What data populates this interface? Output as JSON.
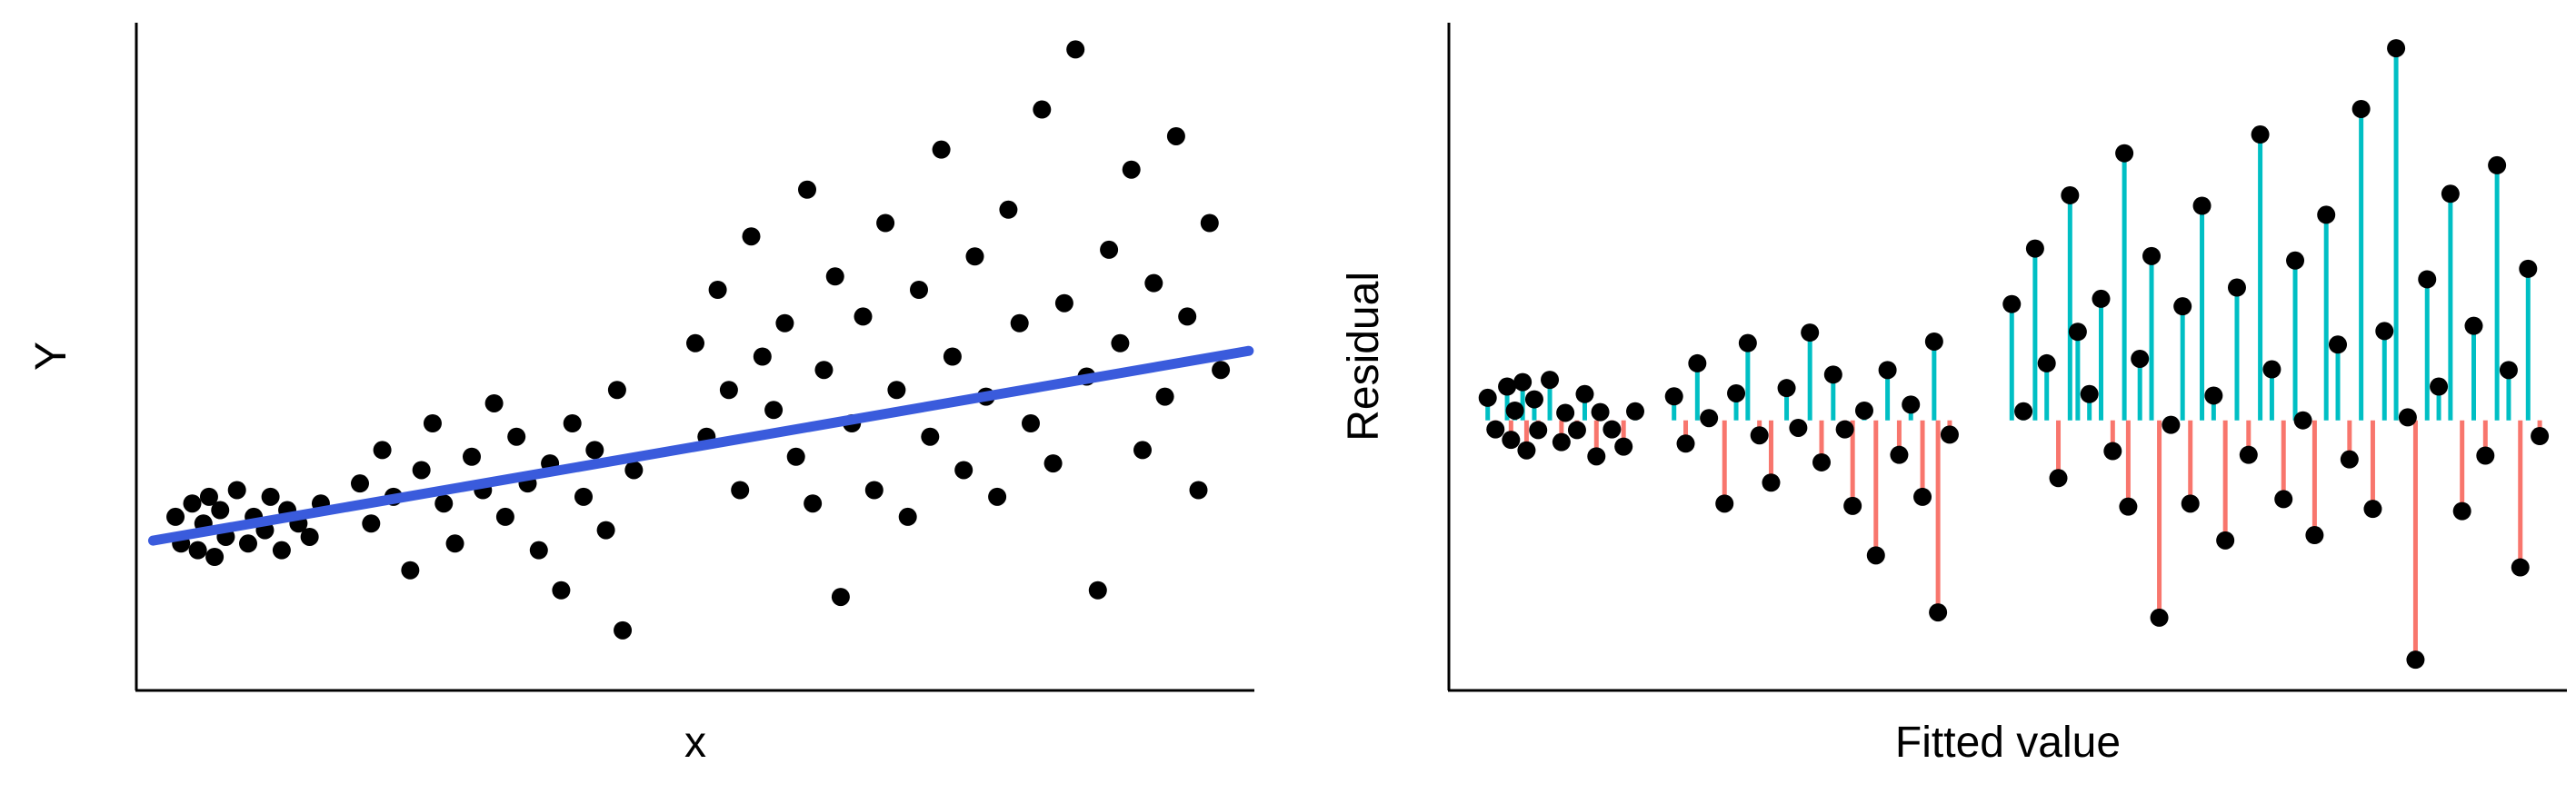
{
  "colors": {
    "background": "#FFFFFF",
    "point": "#000000",
    "axis": "#000000",
    "fit_line": "#3A5BDC",
    "positive_residual": "#00BFC4",
    "negative_residual": "#F8766D"
  },
  "chart_data": [
    {
      "type": "scatter",
      "title": "",
      "xlabel": "x",
      "ylabel": "Y",
      "grid": false,
      "axis_ticks": false,
      "xlim": [
        0,
        1.0
      ],
      "ylim": [
        0,
        1.0
      ],
      "fit_line": {
        "intercept": 0.22,
        "slope": 0.29,
        "x_extent": [
          0.015,
          0.995
        ]
      },
      "points": [
        [
          0.035,
          0.26
        ],
        [
          0.04,
          0.22
        ],
        [
          0.05,
          0.28
        ],
        [
          0.055,
          0.21
        ],
        [
          0.06,
          0.25
        ],
        [
          0.065,
          0.29
        ],
        [
          0.07,
          0.2
        ],
        [
          0.075,
          0.27
        ],
        [
          0.08,
          0.23
        ],
        [
          0.09,
          0.3
        ],
        [
          0.1,
          0.22
        ],
        [
          0.105,
          0.26
        ],
        [
          0.115,
          0.24
        ],
        [
          0.12,
          0.29
        ],
        [
          0.13,
          0.21
        ],
        [
          0.135,
          0.27
        ],
        [
          0.145,
          0.25
        ],
        [
          0.155,
          0.23
        ],
        [
          0.165,
          0.28
        ],
        [
          0.2,
          0.31
        ],
        [
          0.21,
          0.25
        ],
        [
          0.22,
          0.36
        ],
        [
          0.23,
          0.29
        ],
        [
          0.245,
          0.18
        ],
        [
          0.255,
          0.33
        ],
        [
          0.265,
          0.4
        ],
        [
          0.275,
          0.28
        ],
        [
          0.285,
          0.22
        ],
        [
          0.3,
          0.35
        ],
        [
          0.31,
          0.3
        ],
        [
          0.32,
          0.43
        ],
        [
          0.33,
          0.26
        ],
        [
          0.34,
          0.38
        ],
        [
          0.35,
          0.31
        ],
        [
          0.36,
          0.21
        ],
        [
          0.37,
          0.34
        ],
        [
          0.38,
          0.15
        ],
        [
          0.39,
          0.4
        ],
        [
          0.4,
          0.29
        ],
        [
          0.41,
          0.36
        ],
        [
          0.42,
          0.24
        ],
        [
          0.43,
          0.45
        ],
        [
          0.435,
          0.09
        ],
        [
          0.445,
          0.33
        ],
        [
          0.5,
          0.52
        ],
        [
          0.51,
          0.38
        ],
        [
          0.52,
          0.6
        ],
        [
          0.53,
          0.45
        ],
        [
          0.54,
          0.3
        ],
        [
          0.55,
          0.68
        ],
        [
          0.56,
          0.5
        ],
        [
          0.57,
          0.42
        ],
        [
          0.58,
          0.55
        ],
        [
          0.59,
          0.35
        ],
        [
          0.6,
          0.75
        ],
        [
          0.605,
          0.28
        ],
        [
          0.615,
          0.48
        ],
        [
          0.625,
          0.62
        ],
        [
          0.63,
          0.14
        ],
        [
          0.64,
          0.4
        ],
        [
          0.65,
          0.56
        ],
        [
          0.66,
          0.3
        ],
        [
          0.67,
          0.7
        ],
        [
          0.68,
          0.45
        ],
        [
          0.69,
          0.26
        ],
        [
          0.7,
          0.6
        ],
        [
          0.71,
          0.38
        ],
        [
          0.72,
          0.81
        ],
        [
          0.73,
          0.5
        ],
        [
          0.74,
          0.33
        ],
        [
          0.75,
          0.65
        ],
        [
          0.76,
          0.44
        ],
        [
          0.77,
          0.29
        ],
        [
          0.78,
          0.72
        ],
        [
          0.79,
          0.55
        ],
        [
          0.8,
          0.4
        ],
        [
          0.81,
          0.87
        ],
        [
          0.82,
          0.34
        ],
        [
          0.83,
          0.58
        ],
        [
          0.84,
          0.96
        ],
        [
          0.85,
          0.47
        ],
        [
          0.86,
          0.15
        ],
        [
          0.87,
          0.66
        ],
        [
          0.88,
          0.52
        ],
        [
          0.89,
          0.78
        ],
        [
          0.9,
          0.36
        ],
        [
          0.91,
          0.61
        ],
        [
          0.92,
          0.44
        ],
        [
          0.93,
          0.83
        ],
        [
          0.94,
          0.56
        ],
        [
          0.95,
          0.3
        ],
        [
          0.96,
          0.7
        ],
        [
          0.97,
          0.48
        ]
      ]
    },
    {
      "type": "scatter",
      "title": "",
      "xlabel": "Fitted value",
      "ylabel": "Residual",
      "grid": false,
      "axis_ticks": false,
      "segments_to_zero": true,
      "xlim": [
        0.22,
        0.508
      ],
      "ylim": [
        -0.36,
        0.53
      ],
      "points": [
        [
          0.23,
          0.03
        ],
        [
          0.232,
          -0.012
        ],
        [
          0.235,
          0.045
        ],
        [
          0.236,
          -0.026
        ],
        [
          0.237,
          0.013
        ],
        [
          0.239,
          0.051
        ],
        [
          0.24,
          -0.04
        ],
        [
          0.242,
          0.028
        ],
        [
          0.243,
          -0.013
        ],
        [
          0.246,
          0.054
        ],
        [
          0.249,
          -0.029
        ],
        [
          0.25,
          0.01
        ],
        [
          0.253,
          -0.013
        ],
        [
          0.255,
          0.035
        ],
        [
          0.258,
          -0.048
        ],
        [
          0.259,
          0.011
        ],
        [
          0.262,
          -0.012
        ],
        [
          0.265,
          -0.035
        ],
        [
          0.268,
          0.012
        ],
        [
          0.278,
          0.032
        ],
        [
          0.281,
          -0.031
        ],
        [
          0.284,
          0.076
        ],
        [
          0.287,
          0.003
        ],
        [
          0.291,
          -0.111
        ],
        [
          0.294,
          0.036
        ],
        [
          0.297,
          0.103
        ],
        [
          0.3,
          -0.02
        ],
        [
          0.303,
          -0.083
        ],
        [
          0.307,
          0.043
        ],
        [
          0.31,
          -0.01
        ],
        [
          0.313,
          0.117
        ],
        [
          0.316,
          -0.056
        ],
        [
          0.319,
          0.061
        ],
        [
          0.322,
          -0.012
        ],
        [
          0.324,
          -0.114
        ],
        [
          0.327,
          0.013
        ],
        [
          0.33,
          -0.18
        ],
        [
          0.333,
          0.067
        ],
        [
          0.336,
          -0.046
        ],
        [
          0.339,
          0.021
        ],
        [
          0.342,
          -0.102
        ],
        [
          0.345,
          0.105
        ],
        [
          0.346,
          -0.256
        ],
        [
          0.349,
          -0.019
        ],
        [
          0.365,
          0.155
        ],
        [
          0.368,
          0.012
        ],
        [
          0.371,
          0.229
        ],
        [
          0.374,
          0.076
        ],
        [
          0.377,
          -0.077
        ],
        [
          0.38,
          0.3
        ],
        [
          0.382,
          0.118
        ],
        [
          0.385,
          0.035
        ],
        [
          0.388,
          0.162
        ],
        [
          0.391,
          -0.041
        ],
        [
          0.394,
          0.356
        ],
        [
          0.395,
          -0.115
        ],
        [
          0.398,
          0.082
        ],
        [
          0.401,
          0.219
        ],
        [
          0.403,
          -0.263
        ],
        [
          0.406,
          -0.006
        ],
        [
          0.409,
          0.152
        ],
        [
          0.411,
          -0.111
        ],
        [
          0.414,
          0.286
        ],
        [
          0.417,
          0.033
        ],
        [
          0.42,
          -0.16
        ],
        [
          0.423,
          0.177
        ],
        [
          0.426,
          -0.046
        ],
        [
          0.429,
          0.381
        ],
        [
          0.432,
          0.068
        ],
        [
          0.435,
          -0.105
        ],
        [
          0.438,
          0.213
        ],
        [
          0.44,
          0.0
        ],
        [
          0.443,
          -0.153
        ],
        [
          0.446,
          0.274
        ],
        [
          0.449,
          0.101
        ],
        [
          0.452,
          -0.052
        ],
        [
          0.455,
          0.415
        ],
        [
          0.458,
          -0.118
        ],
        [
          0.461,
          0.119
        ],
        [
          0.464,
          0.496
        ],
        [
          0.467,
          0.004
        ],
        [
          0.469,
          -0.319
        ],
        [
          0.472,
          0.188
        ],
        [
          0.475,
          0.045
        ],
        [
          0.478,
          0.302
        ],
        [
          0.481,
          -0.121
        ],
        [
          0.484,
          0.126
        ],
        [
          0.487,
          -0.047
        ],
        [
          0.49,
          0.34
        ],
        [
          0.493,
          0.067
        ],
        [
          0.496,
          -0.196
        ],
        [
          0.498,
          0.202
        ],
        [
          0.501,
          -0.021
        ]
      ]
    }
  ]
}
